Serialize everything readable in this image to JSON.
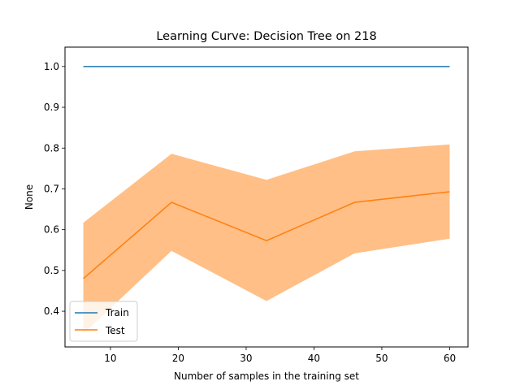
{
  "chart_data": {
    "type": "line",
    "title": "Learning Curve: Decision Tree on 218",
    "xlabel": "Number of samples in the training set",
    "ylabel": "None",
    "xlim": [
      3.3,
      62.7
    ],
    "ylim": [
      0.3125,
      1.0475
    ],
    "xticks": [
      10,
      20,
      30,
      40,
      50,
      60
    ],
    "yticks": [
      0.4,
      0.5,
      0.6,
      0.7,
      0.8,
      0.9,
      1.0
    ],
    "ytick_labels": [
      "0.4",
      "0.5",
      "0.6",
      "0.7",
      "0.8",
      "0.9",
      "1.0"
    ],
    "x": [
      6,
      19,
      33,
      46,
      60
    ],
    "series": [
      {
        "name": "Train",
        "color": "#1f77b4",
        "values": [
          1.0,
          1.0,
          1.0,
          1.0,
          1.0
        ],
        "band_lower": [
          1.0,
          1.0,
          1.0,
          1.0,
          1.0
        ],
        "band_upper": [
          1.0,
          1.0,
          1.0,
          1.0,
          1.0
        ]
      },
      {
        "name": "Test",
        "color": "#ff7f0e",
        "band_color": "#ffbf86",
        "values": [
          0.48,
          0.667,
          0.573,
          0.667,
          0.693
        ],
        "band_lower": [
          0.345,
          0.548,
          0.425,
          0.542,
          0.578
        ],
        "band_upper": [
          0.617,
          0.786,
          0.722,
          0.792,
          0.809
        ]
      }
    ],
    "grid": false,
    "legend_position": "lower-left"
  }
}
